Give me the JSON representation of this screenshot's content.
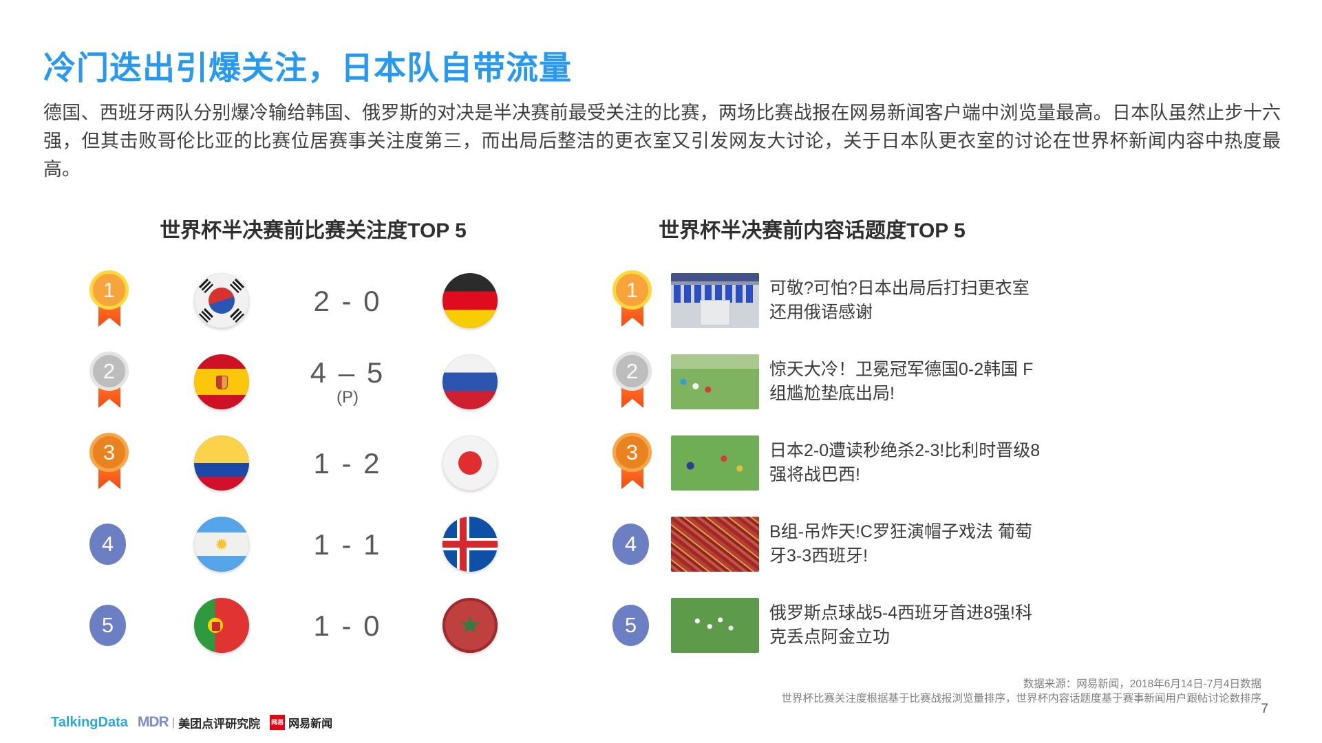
{
  "slide": {
    "title": "冷门迭出引爆关注，日本队自带流量",
    "body": "德国、西班牙两队分别爆冷输给韩国、俄罗斯的对决是半决赛前最受关注的比赛，两场比赛战报在网易新闻客户端中浏览量最高。日本队虽然止步十六强，但其击败哥伦比亚的比赛位居赛事关注度第三，而出局后整洁的更衣室又引发网友大讨论，关于日本队更衣室的讨论在世界杯新闻内容中热度最高。",
    "page_number": "7"
  },
  "left_panel": {
    "heading": "世界杯半决赛前比赛关注度TOP 5",
    "rows": [
      {
        "rank": "1",
        "team_a": "south-korea",
        "score": "2 - 0",
        "score_note": "",
        "team_b": "germany"
      },
      {
        "rank": "2",
        "team_a": "spain",
        "score": "4 – 5",
        "score_note": "(P)",
        "team_b": "russia"
      },
      {
        "rank": "3",
        "team_a": "colombia",
        "score": "1 - 2",
        "score_note": "",
        "team_b": "japan"
      },
      {
        "rank": "4",
        "team_a": "argentina",
        "score": "1 - 1",
        "score_note": "",
        "team_b": "iceland"
      },
      {
        "rank": "5",
        "team_a": "portugal",
        "score": "1 - 0",
        "score_note": "",
        "team_b": "morocco"
      }
    ]
  },
  "right_panel": {
    "heading": "世界杯半决赛前内容话题度TOP 5",
    "rows": [
      {
        "rank": "1",
        "thumbnail": "japan-locker-room",
        "headline": "可敬?可怕?日本出局后打扫更衣室 还用俄语感谢"
      },
      {
        "rank": "2",
        "thumbnail": "germany-korea-match",
        "headline": "惊天大冷！卫冕冠军德国0-2韩国 F组尴尬垫底出局!"
      },
      {
        "rank": "3",
        "thumbnail": "japan-belgium-match",
        "headline": "日本2-0遭读秒绝杀2-3!比利时晋级8强将战巴西!"
      },
      {
        "rank": "4",
        "thumbnail": "portugal-spain-fans",
        "headline": "B组-吊炸天!C罗狂演帽子戏法 葡萄牙3-3西班牙!"
      },
      {
        "rank": "5",
        "thumbnail": "russia-spain-match",
        "headline": "俄罗斯点球战5-4西班牙首进8强!科克丢点阿金立功"
      }
    ]
  },
  "footer": {
    "source_line1": "数据来源：网易新闻，2018年6月14日-7月4日数据",
    "source_line2": "世界杯比赛关注度根据基于比赛战报浏览量排序，世界杯内容话题度基于赛事新闻用户跟帖讨论数排序",
    "logos": {
      "talkingdata": "TalkingData",
      "mdr_mark": "MDR",
      "mdr_divider": "|",
      "meituan": "美团点评研究院",
      "netease_mark": "网易",
      "netease": "网易新闻"
    }
  },
  "colors": {
    "title_blue": "#2899F0",
    "rank_circle_blue": "#6D7FC3",
    "medal_gold": "#F7A43C",
    "medal_silver": "#BDBDBD",
    "medal_bronze": "#E8831F",
    "ribbon_orange": "#F8490F",
    "body_text": "#404040",
    "score_gray": "#595959"
  }
}
